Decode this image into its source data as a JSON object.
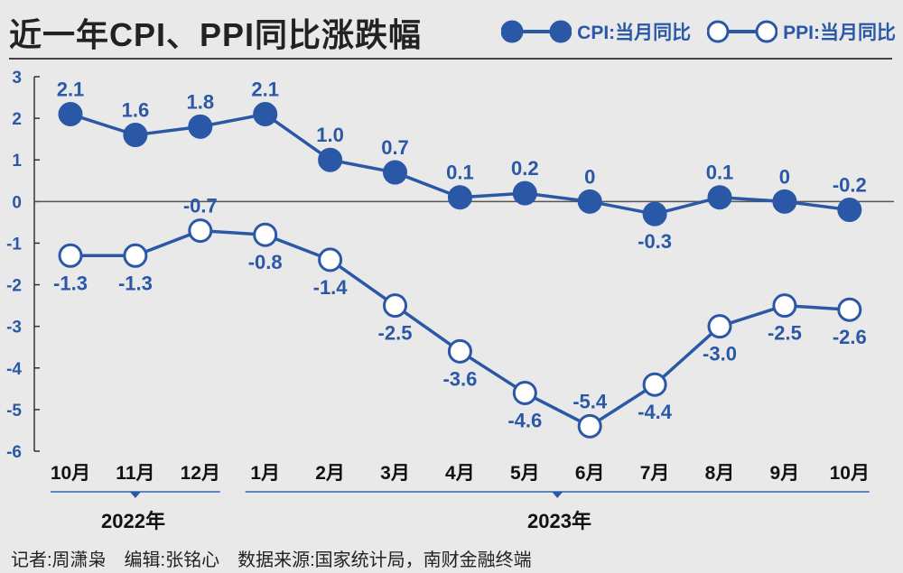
{
  "title": "近一年CPI、PPI同比涨跌幅",
  "legend": {
    "cpi": "CPI:当月同比",
    "ppi": "PPI:当月同比"
  },
  "colors": {
    "accent": "#2a58a6",
    "background": "#e9e9e9"
  },
  "chart_data": {
    "type": "line",
    "categories": [
      "10月",
      "11月",
      "12月",
      "1月",
      "2月",
      "3月",
      "4月",
      "5月",
      "6月",
      "7月",
      "8月",
      "9月",
      "10月"
    ],
    "series": [
      {
        "name": "CPI:当月同比",
        "values": [
          2.1,
          1.6,
          1.8,
          2.1,
          1.0,
          0.7,
          0.1,
          0.2,
          0,
          -0.3,
          0.1,
          0,
          -0.2
        ],
        "labels": [
          "2.1",
          "1.6",
          "1.8",
          "2.1",
          "1.0",
          "0.7",
          "0.1",
          "0.2",
          "0",
          "-0.3",
          "0.1",
          "0",
          "-0.2"
        ],
        "marker": "filled"
      },
      {
        "name": "PPI:当月同比",
        "values": [
          -1.3,
          -1.3,
          -0.7,
          -0.8,
          -1.4,
          -2.5,
          -3.6,
          -4.6,
          -5.4,
          -4.4,
          -3.0,
          -2.5,
          -2.6
        ],
        "labels": [
          "-1.3",
          "-1.3",
          "-0.7",
          "-0.8",
          "-1.4",
          "-2.5",
          "-3.6",
          "-4.6",
          "-5.4",
          "-4.4",
          "-3.0",
          "-2.5",
          "-2.6"
        ],
        "marker": "hollow"
      }
    ],
    "ylim": [
      -6,
      3
    ],
    "yticks": [
      "3",
      "2",
      "1",
      "0",
      "-1",
      "-2",
      "-3",
      "-4",
      "-5",
      "-6"
    ],
    "year_groups": [
      {
        "label": "2022年",
        "span": [
          "10月",
          "12月"
        ]
      },
      {
        "label": "2023年",
        "span": [
          "1月",
          "10月"
        ]
      }
    ],
    "grid": false,
    "legend_position": "top-right"
  },
  "credits": "记者:周潇枭　编辑:张铭心　数据来源:国家统计局，南财金融终端"
}
